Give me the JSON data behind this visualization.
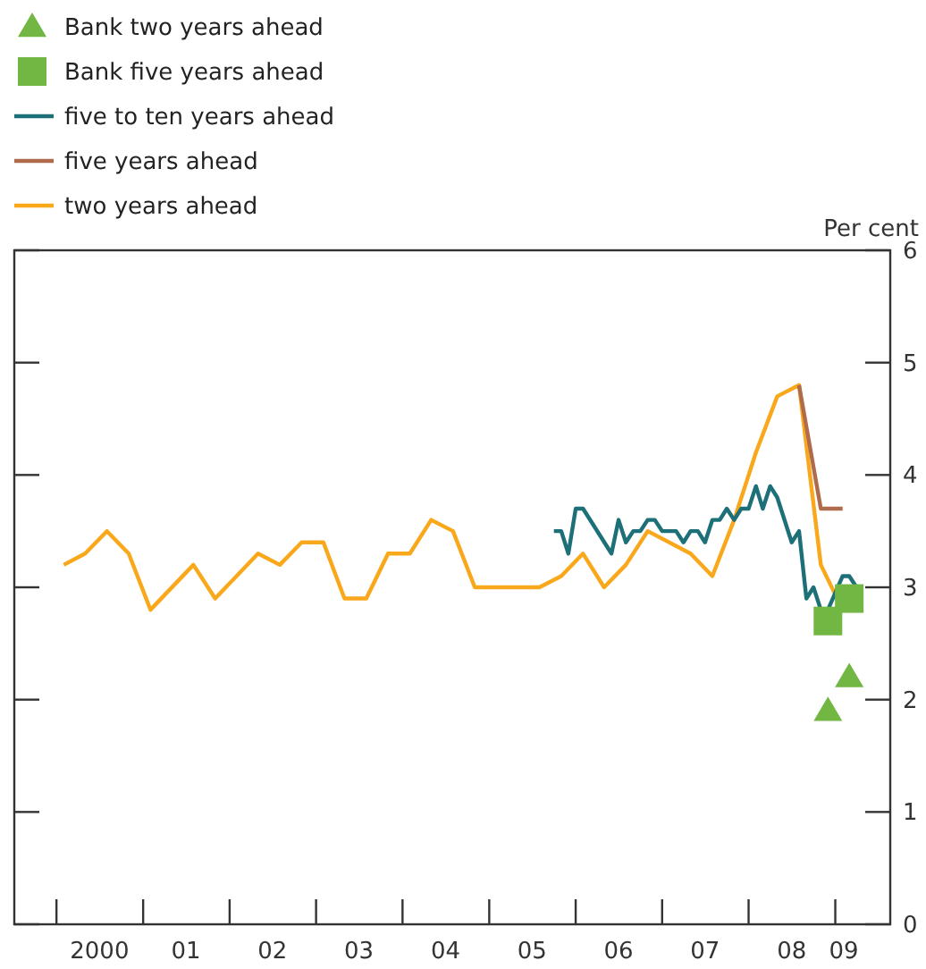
{
  "chart_data": {
    "type": "line",
    "ylabel": "Per cent",
    "legend": "top",
    "grid": false,
    "xlim": [
      "1999-07-07",
      "2009-08-21"
    ],
    "ylim": [
      0,
      6
    ],
    "yticks": [
      0,
      1,
      2,
      3,
      4,
      5,
      6
    ],
    "xticks": [
      {
        "value": "2000",
        "label": null
      },
      {
        "value": "2000-07",
        "label": "2000"
      },
      {
        "value": "2001",
        "label": null
      },
      {
        "value": "2001-07",
        "label": "01"
      },
      {
        "value": "2002",
        "label": null
      },
      {
        "value": "2002-07",
        "label": "02"
      },
      {
        "value": "2003",
        "label": null
      },
      {
        "value": "2003-07",
        "label": "03"
      },
      {
        "value": "2004",
        "label": null
      },
      {
        "value": "2004-07",
        "label": "04"
      },
      {
        "value": "2005",
        "label": null
      },
      {
        "value": "2005-07",
        "label": "05"
      },
      {
        "value": "2006",
        "label": null
      },
      {
        "value": "2006-07",
        "label": "06"
      },
      {
        "value": "2007",
        "label": null
      },
      {
        "value": "2007-07",
        "label": "07"
      },
      {
        "value": "2008",
        "label": null
      },
      {
        "value": "2008-07",
        "label": "08"
      },
      {
        "value": "2009",
        "label": null
      },
      {
        "value": "2009-02-06",
        "label": "09"
      }
    ],
    "series": [
      {
        "name": "Bank two years ahead",
        "type": "scatter",
        "marker": "triangle",
        "color": "#72b743",
        "x": [
          "2008-12",
          "2009-03"
        ],
        "values": [
          1.9,
          2.2
        ]
      },
      {
        "name": "Bank five years ahead",
        "type": "scatter",
        "marker": "square",
        "color": "#72b743",
        "x": [
          "2008-12",
          "2009-03"
        ],
        "values": [
          2.7,
          2.9
        ]
      },
      {
        "name": "five to ten years ahead",
        "color": "#1d7077",
        "x": [
          "2005-10",
          "2005-11",
          "2005-12",
          "2006-01",
          "2006-02",
          "2006-06",
          "2006-07",
          "2006-08",
          "2006-09",
          "2006-10",
          "2006-11",
          "2006-12",
          "2007-01",
          "2007-03",
          "2007-04",
          "2007-05",
          "2007-06",
          "2007-07",
          "2007-08",
          "2007-09",
          "2007-10",
          "2007-11",
          "2007-12",
          "2008-01",
          "2008-02",
          "2008-03",
          "2008-04",
          "2008-05",
          "2008-07",
          "2008-08",
          "2008-09",
          "2008-10",
          "2008-11",
          "2008-12",
          "2009-02",
          "2009-03",
          "2009-04"
        ],
        "values": [
          3.5,
          3.5,
          3.3,
          3.7,
          3.7,
          3.3,
          3.6,
          3.4,
          3.5,
          3.5,
          3.6,
          3.6,
          3.5,
          3.5,
          3.4,
          3.5,
          3.5,
          3.4,
          3.6,
          3.6,
          3.7,
          3.6,
          3.7,
          3.7,
          3.9,
          3.7,
          3.9,
          3.8,
          3.4,
          3.5,
          2.9,
          3.0,
          2.8,
          2.8,
          3.1,
          3.1,
          3.0
        ]
      },
      {
        "name": "five years ahead",
        "color": "#b06a4c",
        "x": [
          "2008-08",
          "2008-11",
          "2009-02"
        ],
        "values": [
          4.8,
          3.7,
          3.7
        ]
      },
      {
        "name": "two years ahead",
        "color": "#f9a81b",
        "x": [
          "2000-02",
          "2000-05",
          "2000-08",
          "2000-11",
          "2001-02",
          "2001-08",
          "2001-11",
          "2002-05",
          "2002-08",
          "2002-11",
          "2003-02",
          "2003-05",
          "2003-08",
          "2003-11",
          "2004-02",
          "2004-05",
          "2004-08",
          "2004-11",
          "2005-08",
          "2005-11",
          "2006-02",
          "2006-05",
          "2006-08",
          "2006-11",
          "2007-05",
          "2007-08",
          "2007-11",
          "2008-02",
          "2008-05",
          "2008-08",
          "2008-11",
          "2009-02"
        ],
        "values": [
          3.2,
          3.3,
          3.5,
          3.3,
          2.8,
          3.2,
          2.9,
          3.3,
          3.2,
          3.4,
          3.4,
          2.9,
          2.9,
          3.3,
          3.3,
          3.6,
          3.5,
          3.0,
          3.0,
          3.1,
          3.3,
          3.0,
          3.2,
          3.5,
          3.3,
          3.1,
          3.6,
          4.2,
          4.7,
          4.8,
          3.2,
          2.8
        ]
      }
    ]
  }
}
